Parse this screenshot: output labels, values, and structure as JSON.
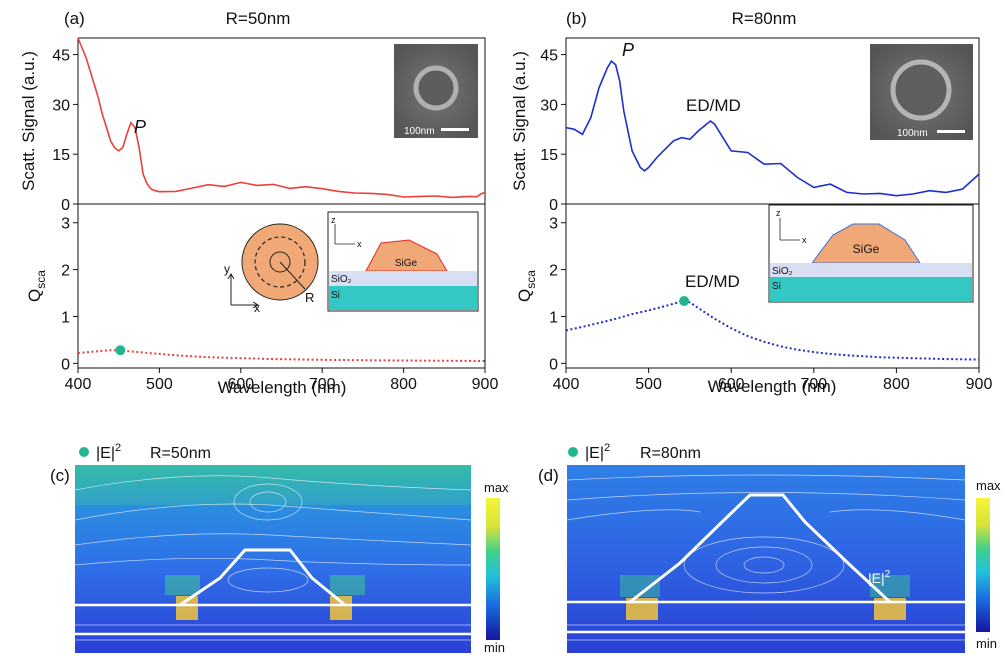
{
  "chart_data": [
    {
      "panel": "(a)",
      "title": "R=50nm",
      "type": "line",
      "xlabel": "Wavelength (nm)",
      "xlim": [
        400,
        900
      ],
      "xticks": [
        "400",
        "500",
        "600",
        "700",
        "800",
        "900"
      ],
      "top": {
        "ylabel": "Scatt. Signal (a.u.)",
        "ylim": [
          0,
          50
        ],
        "yticks": [
          "0",
          "15",
          "30",
          "45"
        ],
        "color": "#e8413c",
        "annotation": "P",
        "inset_scalebar": "100nm",
        "x": [
          400,
          405,
          410,
          415,
          420,
          425,
          430,
          435,
          440,
          445,
          450,
          455,
          460,
          465,
          470,
          475,
          480,
          485,
          490,
          495,
          500,
          520,
          540,
          560,
          580,
          600,
          620,
          640,
          660,
          680,
          700,
          720,
          740,
          760,
          780,
          800,
          820,
          840,
          860,
          880,
          890,
          895,
          900
        ],
        "y": [
          50,
          47,
          44,
          40,
          36,
          32,
          27,
          23,
          19,
          17,
          16,
          17,
          21,
          24.5,
          23,
          17,
          9,
          6,
          4.5,
          4,
          3.7,
          3.8,
          4.8,
          5.8,
          5.3,
          6.5,
          5.6,
          5.9,
          4.7,
          5.2,
          4.6,
          3.8,
          3.3,
          3.2,
          2.9,
          2.1,
          2.3,
          2.4,
          2.0,
          2.3,
          2.2,
          3.0,
          3.5
        ]
      },
      "bottom": {
        "ylabel": "Q",
        "ylabel_sub": "sca",
        "ylim": [
          -0.1,
          3.4
        ],
        "yticks": [
          "0",
          "1",
          "2",
          "3"
        ],
        "color": "#e8413c",
        "marker": {
          "x": 452,
          "y": 0.28,
          "color": "#22b58f"
        },
        "x": [
          400,
          420,
          440,
          452,
          460,
          480,
          500,
          520,
          540,
          560,
          580,
          600,
          620,
          640,
          660,
          680,
          700,
          720,
          740,
          760,
          780,
          800,
          820,
          840,
          860,
          880,
          900
        ],
        "y": [
          0.22,
          0.25,
          0.28,
          0.28,
          0.26,
          0.23,
          0.2,
          0.17,
          0.15,
          0.13,
          0.12,
          0.11,
          0.1,
          0.09,
          0.085,
          0.08,
          0.075,
          0.07,
          0.068,
          0.065,
          0.062,
          0.06,
          0.058,
          0.056,
          0.054,
          0.052,
          0.05
        ]
      },
      "schematic": {
        "particle": "SiGe",
        "oxide": "SiO₂",
        "substrate": "Si",
        "radius_label": "R",
        "axis_x": "x",
        "axis_y": "y",
        "axis_z": "z"
      }
    },
    {
      "panel": "(b)",
      "title": "R=80nm",
      "type": "line",
      "xlabel": "Wavelength (nm)",
      "xlim": [
        400,
        900
      ],
      "xticks": [
        "400",
        "500",
        "600",
        "700",
        "800",
        "900"
      ],
      "top": {
        "ylabel": "Scatt. Signal (a.u.)",
        "ylim": [
          0,
          50
        ],
        "yticks": [
          "0",
          "15",
          "30",
          "45"
        ],
        "color": "#1c2fd1",
        "annotation": "P",
        "annotation2": "ED/MD",
        "inset_scalebar": "100nm",
        "x": [
          400,
          410,
          420,
          425,
          430,
          440,
          450,
          455,
          460,
          465,
          470,
          480,
          490,
          495,
          500,
          510,
          520,
          530,
          540,
          550,
          560,
          570,
          575,
          580,
          590,
          600,
          620,
          640,
          660,
          680,
          700,
          720,
          740,
          760,
          780,
          800,
          820,
          840,
          860,
          880,
          900
        ],
        "y": [
          23,
          22.5,
          21,
          23.5,
          26,
          35,
          41,
          43,
          42,
          37,
          28,
          16,
          11,
          10,
          11,
          14,
          16.5,
          19,
          20,
          19.5,
          22,
          24,
          25,
          24,
          20,
          16,
          15.5,
          12,
          12.2,
          8,
          5,
          6,
          3.5,
          3,
          3.2,
          2.5,
          3,
          4,
          3.5,
          4.5,
          9
        ]
      },
      "bottom": {
        "ylabel": "Q",
        "ylabel_sub": "sca",
        "ylim": [
          -0.1,
          3.4
        ],
        "yticks": [
          "0",
          "1",
          "2",
          "3"
        ],
        "color": "#1c2fd1",
        "annotation": "ED/MD",
        "marker": {
          "x": 543,
          "y": 1.33,
          "color": "#22b58f"
        },
        "x": [
          400,
          420,
          440,
          460,
          480,
          500,
          520,
          540,
          543,
          550,
          560,
          580,
          600,
          620,
          640,
          660,
          680,
          700,
          720,
          740,
          760,
          780,
          800,
          820,
          840,
          860,
          880,
          900
        ],
        "y": [
          0.7,
          0.78,
          0.86,
          0.95,
          1.05,
          1.13,
          1.22,
          1.32,
          1.33,
          1.3,
          1.18,
          0.95,
          0.75,
          0.58,
          0.46,
          0.36,
          0.29,
          0.24,
          0.2,
          0.17,
          0.15,
          0.13,
          0.12,
          0.11,
          0.1,
          0.09,
          0.085,
          0.08
        ]
      },
      "schematic": {
        "particle": "SiGe",
        "oxide": "SiO₂",
        "substrate": "Si",
        "axis_x": "x",
        "axis_z": "z"
      }
    },
    {
      "panel": "(c)",
      "type": "heatmap",
      "legend_label": "|E|",
      "legend_sup": "2",
      "title": "R=50nm",
      "colorbar_max": "max",
      "colorbar_min": "min",
      "legend_marker_color": "#22b58f"
    },
    {
      "panel": "(d)",
      "type": "heatmap",
      "legend_label": "|E|",
      "legend_sup": "2",
      "title": "R=80nm",
      "colorbar_max": "max",
      "colorbar_min": "min",
      "legend_marker_color": "#22b58f",
      "inner_label": "|E|",
      "inner_label_sup": "2"
    }
  ]
}
